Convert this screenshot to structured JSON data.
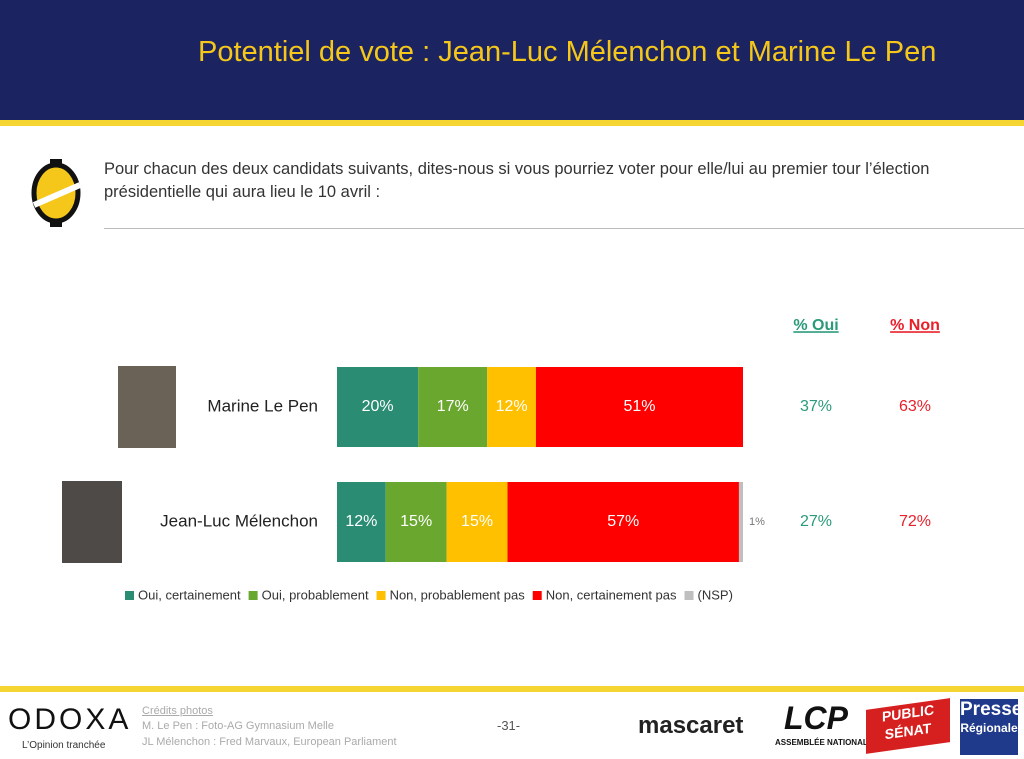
{
  "header": {
    "title": "Potentiel de vote : Jean-Luc Mélenchon et Marine Le Pen"
  },
  "question": "Pour chacun des deux candidats suivants, dites-nous si vous pourriez voter pour elle/lui au premier tour l’élection présidentielle qui aura lieu le 10 avril :",
  "chart_data": {
    "type": "stacked_bar",
    "orientation": "horizontal",
    "categories": [
      "Marine Le Pen",
      "Jean-Luc Mélenchon"
    ],
    "xlim": [
      0,
      100
    ],
    "series": [
      {
        "name": "Oui, certainement",
        "color": "#2a8c73",
        "values": [
          20,
          12
        ],
        "value_labels": [
          "20%",
          "12%"
        ]
      },
      {
        "name": "Oui, probablement",
        "color": "#6aa72f",
        "values": [
          17,
          15
        ],
        "value_labels": [
          "17%",
          "15%"
        ]
      },
      {
        "name": "Non, probablement pas",
        "color": "#ffc000",
        "values": [
          12,
          15
        ],
        "value_labels": [
          "12%",
          "15%"
        ]
      },
      {
        "name": "Non, certainement pas",
        "color": "#ff0000",
        "values": [
          51,
          57
        ],
        "value_labels": [
          "51%",
          "57%"
        ]
      },
      {
        "name": "(NSP)",
        "color": "#bfbfbf",
        "values": [
          0,
          1
        ],
        "value_labels": [
          null,
          "1%"
        ]
      }
    ],
    "summary_columns": [
      {
        "name": "% Oui",
        "color": "#2a9a7a",
        "values": [
          37,
          27
        ],
        "value_labels": [
          "37%",
          "27%"
        ]
      },
      {
        "name": "% Non",
        "color": "#e8202a",
        "values": [
          63,
          72
        ],
        "value_labels": [
          "63%",
          "72%"
        ]
      }
    ]
  },
  "footer": {
    "credits_title": "Crédits photos",
    "credits": [
      "M. Le Pen : Foto-AG Gymnasium Melle",
      "JL Mélenchon : Fred Marvaux, European Parliament"
    ],
    "page": "-31-",
    "brand": "ODOXA",
    "tagline": "L’Opinion tranchée",
    "logos": [
      "mascaret",
      "LCP",
      "ASSEMBLÉE NATIONALE",
      "PUBLIC SÉNAT",
      "Presse",
      "Régionale"
    ]
  }
}
